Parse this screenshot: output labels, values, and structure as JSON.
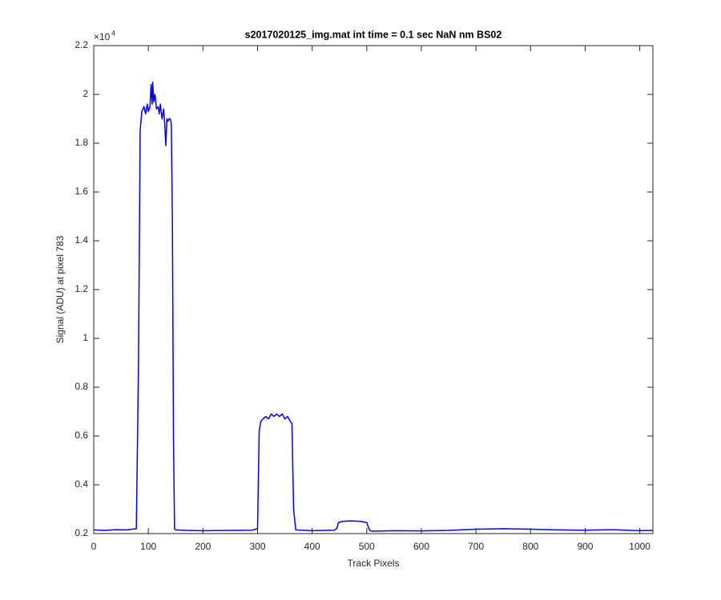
{
  "chart_data": {
    "type": "line",
    "title": "s2017020125_img.mat int time = 0.1 sec  NaN nm BS02",
    "x_label": "Track Pixels",
    "y_label": "Signal (ADU) at pixel 783",
    "y_scale_base": "×10",
    "y_scale_exponent": "4",
    "xlim": [
      0,
      1024
    ],
    "ylim": [
      0.2,
      2.2
    ],
    "xticks": [
      0,
      100,
      200,
      300,
      400,
      500,
      600,
      700,
      800,
      900,
      1000
    ],
    "yticks": [
      0.2,
      0.4,
      0.6,
      0.8,
      1,
      1.2,
      1.4,
      1.6,
      1.8,
      2,
      2.2
    ],
    "grid": false,
    "x": [
      0,
      20,
      40,
      60,
      78,
      82,
      85,
      88,
      92,
      95,
      98,
      100,
      103,
      105,
      107,
      108,
      110,
      112,
      115,
      118,
      120,
      122,
      125,
      128,
      130,
      132,
      134,
      136,
      138,
      140,
      142,
      144,
      146,
      148,
      150,
      170,
      200,
      250,
      290,
      300,
      303,
      306,
      310,
      315,
      320,
      325,
      330,
      335,
      340,
      345,
      350,
      355,
      360,
      363,
      366,
      370,
      400,
      440,
      445,
      448,
      455,
      470,
      490,
      500,
      503,
      506,
      510,
      550,
      600,
      650,
      700,
      750,
      800,
      850,
      900,
      950,
      1000,
      1024
    ],
    "series": [
      {
        "name": "Signal",
        "color": "#0000ff",
        "values": [
          0.215,
          0.213,
          0.216,
          0.215,
          0.22,
          0.9,
          1.85,
          1.93,
          1.95,
          1.92,
          1.96,
          1.93,
          1.95,
          2.04,
          1.96,
          2.05,
          1.97,
          2.0,
          1.94,
          1.95,
          1.92,
          1.96,
          1.9,
          1.94,
          1.88,
          1.79,
          1.9,
          1.89,
          1.9,
          1.9,
          1.88,
          1.5,
          0.6,
          0.22,
          0.215,
          0.213,
          0.212,
          0.213,
          0.214,
          0.22,
          0.62,
          0.66,
          0.67,
          0.68,
          0.67,
          0.69,
          0.68,
          0.69,
          0.68,
          0.69,
          0.67,
          0.68,
          0.66,
          0.65,
          0.3,
          0.215,
          0.212,
          0.214,
          0.22,
          0.245,
          0.25,
          0.252,
          0.25,
          0.245,
          0.225,
          0.212,
          0.21,
          0.212,
          0.211,
          0.213,
          0.218,
          0.22,
          0.218,
          0.215,
          0.214,
          0.216,
          0.212,
          0.213
        ]
      }
    ]
  }
}
